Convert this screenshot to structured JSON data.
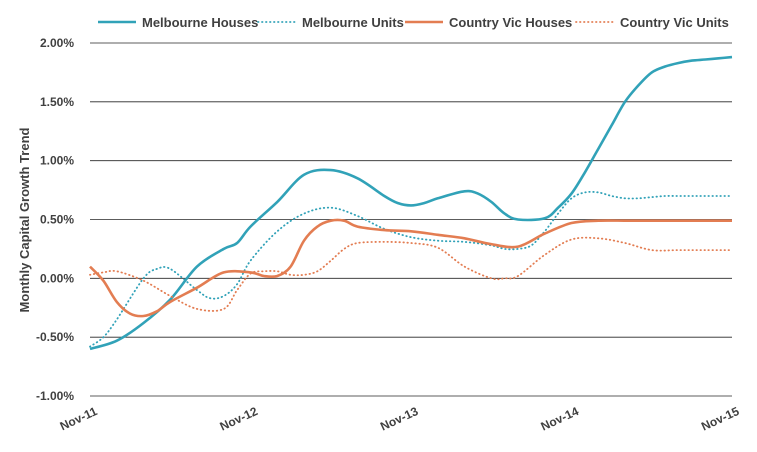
{
  "chart_data": {
    "type": "line",
    "title": "",
    "xlabel": "",
    "ylabel": "Monthly Capital Growth Trend",
    "x_ticks": [
      "Nov-11",
      "Nov-12",
      "Nov-13",
      "Nov-14",
      "Nov-15"
    ],
    "y_ticks": [
      "-1.00%",
      "-0.50%",
      "0.00%",
      "0.50%",
      "1.00%",
      "1.50%",
      "2.00%"
    ],
    "ylim": [
      -1.0,
      2.0
    ],
    "xlim": [
      0,
      48
    ],
    "grid": "horizontal",
    "legend_position": "top",
    "series": [
      {
        "name": "Melbourne Houses",
        "style": "solid",
        "color": "#31a2b8",
        "x": [
          0,
          2,
          4,
          6,
          8,
          10,
          11,
          12,
          14,
          16,
          18,
          20,
          22,
          23,
          24,
          25,
          26,
          28,
          29,
          30,
          31,
          32,
          34,
          35,
          36,
          37,
          38,
          39,
          40,
          41,
          42,
          43,
          44,
          45,
          46,
          47,
          48
        ],
        "y": [
          -0.6,
          -0.53,
          -0.38,
          -0.18,
          0.1,
          0.25,
          0.3,
          0.44,
          0.65,
          0.88,
          0.92,
          0.85,
          0.7,
          0.64,
          0.62,
          0.64,
          0.68,
          0.74,
          0.72,
          0.65,
          0.55,
          0.5,
          0.51,
          0.6,
          0.72,
          0.9,
          1.1,
          1.3,
          1.5,
          1.64,
          1.75,
          1.8,
          1.83,
          1.85,
          1.86,
          1.87,
          1.88
        ]
      },
      {
        "name": "Melbourne Units",
        "style": "dotted",
        "color": "#31a2b8",
        "x": [
          0,
          1,
          2,
          4,
          5,
          6,
          8,
          9,
          10,
          11,
          12,
          14,
          16,
          18,
          20,
          22,
          24,
          26,
          28,
          30,
          31,
          32,
          33,
          34,
          35,
          36,
          37,
          38,
          39,
          40,
          41,
          42,
          43,
          44,
          45,
          46,
          47,
          48
        ],
        "y": [
          -0.58,
          -0.5,
          -0.35,
          0.0,
          0.08,
          0.08,
          -0.1,
          -0.17,
          -0.15,
          -0.05,
          0.15,
          0.4,
          0.55,
          0.6,
          0.53,
          0.42,
          0.35,
          0.32,
          0.31,
          0.28,
          0.25,
          0.25,
          0.28,
          0.4,
          0.55,
          0.68,
          0.73,
          0.73,
          0.7,
          0.68,
          0.68,
          0.69,
          0.7,
          0.7,
          0.7,
          0.7,
          0.7,
          0.7
        ]
      },
      {
        "name": "Country Vic Houses",
        "style": "solid",
        "color": "#e37d52",
        "x": [
          0,
          1,
          2,
          3,
          4,
          5,
          6,
          8,
          10,
          12,
          13,
          14,
          15,
          16,
          17,
          18,
          19,
          20,
          22,
          24,
          26,
          28,
          30,
          32,
          34,
          36,
          38,
          40,
          41,
          42,
          43,
          44,
          45,
          46,
          47,
          48
        ],
        "y": [
          0.1,
          -0.02,
          -0.2,
          -0.3,
          -0.32,
          -0.28,
          -0.2,
          -0.08,
          0.05,
          0.05,
          0.02,
          0.02,
          0.1,
          0.32,
          0.44,
          0.49,
          0.49,
          0.44,
          0.41,
          0.4,
          0.37,
          0.34,
          0.29,
          0.27,
          0.38,
          0.47,
          0.49,
          0.49,
          0.49,
          0.49,
          0.49,
          0.49,
          0.49,
          0.49,
          0.49,
          0.49
        ]
      },
      {
        "name": "Country Vic Units",
        "style": "dotted",
        "color": "#e37d52",
        "x": [
          0,
          1,
          2,
          4,
          6,
          8,
          10,
          11,
          12,
          13,
          14,
          15,
          16,
          17,
          18,
          19,
          20,
          22,
          24,
          26,
          28,
          30,
          31,
          32,
          34,
          36,
          38,
          40,
          42,
          44,
          46,
          48
        ],
        "y": [
          0.03,
          0.05,
          0.06,
          -0.02,
          -0.15,
          -0.26,
          -0.26,
          -0.1,
          0.04,
          0.06,
          0.06,
          0.03,
          0.03,
          0.06,
          0.15,
          0.25,
          0.3,
          0.31,
          0.3,
          0.26,
          0.1,
          0.0,
          0.0,
          0.02,
          0.2,
          0.33,
          0.34,
          0.3,
          0.24,
          0.24,
          0.24,
          0.24
        ]
      }
    ]
  }
}
